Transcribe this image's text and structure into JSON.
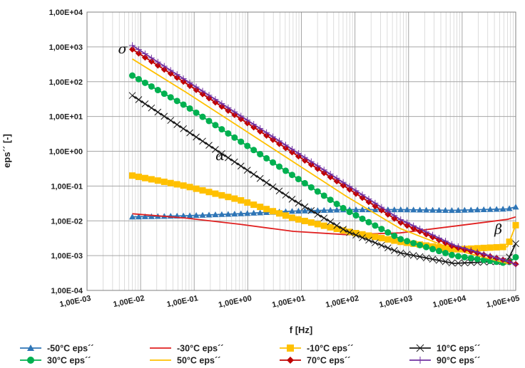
{
  "chart_data": {
    "type": "line",
    "title": "",
    "xlabel": "f [Hz]",
    "ylabel": "eps´´ [-]",
    "x_scale": "log",
    "y_scale": "log",
    "xlim": [
      0.001,
      100000
    ],
    "ylim": [
      0.0001,
      10000
    ],
    "grid": true,
    "legend_position": "bottom",
    "x_tick_labels": [
      "1,00E-03",
      "1,00E-02",
      "1,00E-01",
      "1,00E+00",
      "1,00E+01",
      "1,00E+02",
      "1,00E+03",
      "1,00E+04",
      "1,00E+05"
    ],
    "y_tick_labels": [
      "1,00E-04",
      "1,00E-03",
      "1,00E-02",
      "1,00E-01",
      "1,00E+00",
      "1,00E+01",
      "1,00E+02",
      "1,00E+03",
      "1,00E+04"
    ],
    "x": [
      0.007,
      0.07,
      0.7,
      7,
      70,
      700,
      7000,
      70000,
      100000
    ],
    "series": [
      {
        "name": "-50°C eps´´",
        "color": "#2e75b6",
        "marker": "triangle",
        "values": [
          0.013,
          0.014,
          0.016,
          0.019,
          0.021,
          0.021,
          0.02,
          0.022,
          0.025
        ]
      },
      {
        "name": "-30°C eps´´",
        "color": "#e02020",
        "marker": "none",
        "values": [
          0.016,
          0.012,
          0.008,
          0.005,
          0.004,
          0.0045,
          0.007,
          0.011,
          0.013
        ]
      },
      {
        "name": "-10°C eps´´",
        "color": "#ffc000",
        "marker": "square",
        "values": [
          0.2,
          0.1,
          0.04,
          0.012,
          0.005,
          0.0025,
          0.0015,
          0.0018,
          0.0075
        ]
      },
      {
        "name": "10°C eps´´",
        "color": "#1a1a1a",
        "marker": "x",
        "values": [
          40,
          4,
          0.4,
          0.04,
          0.005,
          0.0012,
          0.0006,
          0.0007,
          0.0022
        ]
      },
      {
        "name": "30°C eps´´",
        "color": "#00b050",
        "marker": "circle",
        "values": [
          150,
          20,
          2,
          0.2,
          0.02,
          0.003,
          0.001,
          0.0006,
          0.0009
        ]
      },
      {
        "name": "50°C eps´´",
        "color": "#ffc000",
        "marker": "none",
        "values": [
          450,
          50,
          5,
          0.5,
          0.05,
          0.006,
          0.0015,
          0.0006,
          0.0006
        ]
      },
      {
        "name": "70°C eps´´",
        "color": "#c00000",
        "marker": "diamond",
        "values": [
          850,
          90,
          9,
          0.9,
          0.09,
          0.009,
          0.0018,
          0.0007,
          0.00057
        ]
      },
      {
        "name": "90°C eps´´",
        "color": "#7030a0",
        "marker": "plus",
        "values": [
          1100,
          110,
          11,
          1.1,
          0.11,
          0.011,
          0.002,
          0.0007,
          0.00055
        ]
      }
    ],
    "annotations": [
      {
        "text": "σ",
        "x": 0.0038,
        "y": 650
      },
      {
        "text": "α",
        "x": 0.25,
        "y": 0.55
      },
      {
        "text": "β",
        "x": 40000,
        "y": 0.0042
      }
    ]
  }
}
